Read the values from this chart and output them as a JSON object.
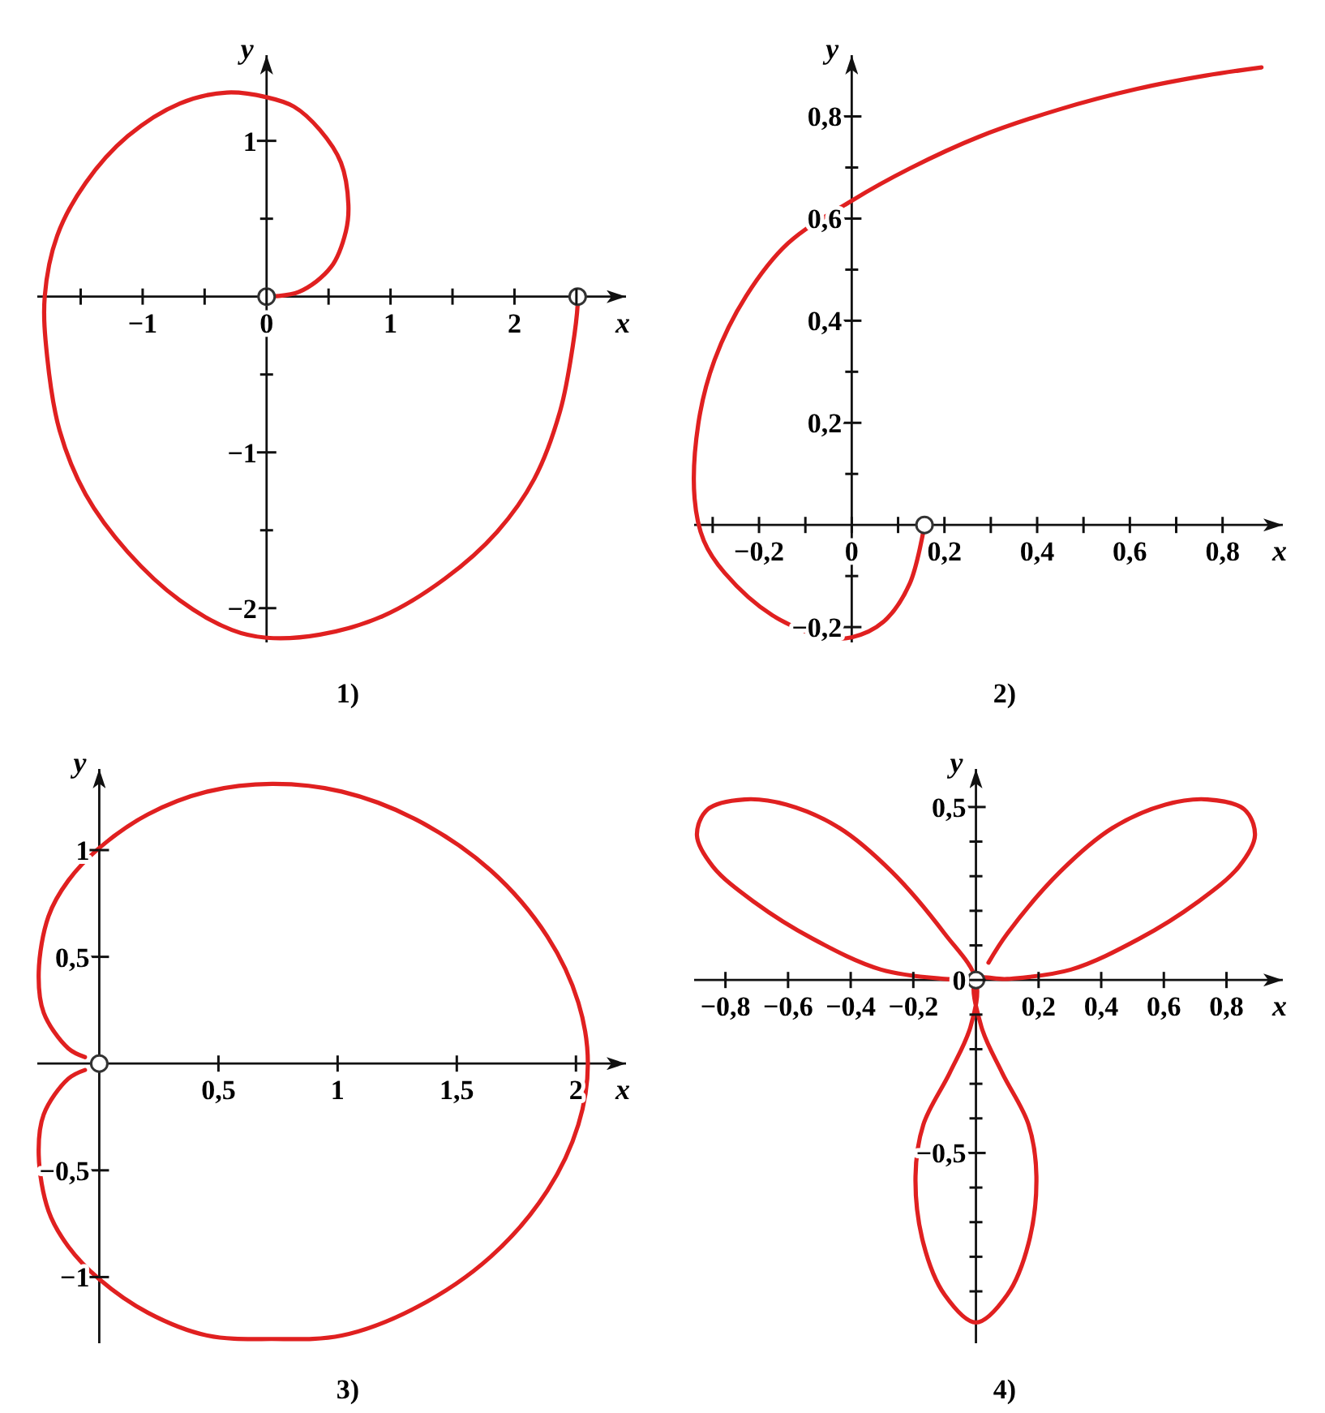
{
  "chart_data": [
    {
      "type": "line",
      "title": "1)",
      "xlabel": "x",
      "ylabel": "y",
      "xlim": [
        -1.85,
        2.9
      ],
      "ylim": [
        -2.22,
        1.55
      ],
      "xticks": [
        {
          "value": -1.5,
          "label": null
        },
        {
          "value": -1,
          "label": "−1"
        },
        {
          "value": -0.5,
          "label": null
        },
        {
          "value": 0,
          "label": "0"
        },
        {
          "value": 0.5,
          "label": null
        },
        {
          "value": 1,
          "label": "1"
        },
        {
          "value": 1.5,
          "label": null
        },
        {
          "value": 2,
          "label": "2"
        },
        {
          "value": 2.5,
          "label": null
        }
      ],
      "yticks": [
        {
          "value": -2,
          "label": "−2"
        },
        {
          "value": -1.5,
          "label": null
        },
        {
          "value": -1,
          "label": "−1"
        },
        {
          "value": -0.5,
          "label": null
        },
        {
          "value": 0.5,
          "label": null
        },
        {
          "value": 1,
          "label": "1"
        }
      ],
      "series": [
        {
          "type": "line",
          "color": "#e02020",
          "x": [
            0,
            0.26,
            0.52,
            0.64,
            0.66,
            0.6,
            0.43,
            0.22,
            0,
            -0.32,
            -0.7,
            -1.12,
            -1.46,
            -1.69,
            -1.79,
            -1.77,
            -1.67,
            -1.46,
            -1.12,
            -0.7,
            -0.28,
            0,
            0.43,
            0.94,
            1.44,
            1.86,
            2.16,
            2.37,
            2.47,
            2.51,
            2.51
          ],
          "values": [
            0,
            0.03,
            0.19,
            0.42,
            0.59,
            0.86,
            1.07,
            1.22,
            1.28,
            1.31,
            1.24,
            1.03,
            0.73,
            0.39,
            0,
            -0.39,
            -0.86,
            -1.27,
            -1.64,
            -1.95,
            -2.14,
            -2.19,
            -2.17,
            -2.05,
            -1.81,
            -1.51,
            -1.17,
            -0.73,
            -0.32,
            -0.05,
            0
          ]
        },
        {
          "type": "scatter",
          "marker": "circle",
          "color": "#333333",
          "x": [
            0,
            2.51
          ],
          "values": [
            0,
            0
          ]
        }
      ]
    },
    {
      "type": "line",
      "title": "2)",
      "xlabel": "x",
      "ylabel": "y",
      "xlim": [
        -0.34,
        0.93
      ],
      "ylim": [
        -0.23,
        0.92
      ],
      "xticks": [
        {
          "value": -0.3,
          "label": null
        },
        {
          "value": -0.2,
          "label": "−0,2"
        },
        {
          "value": -0.1,
          "label": null
        },
        {
          "value": 0,
          "label": "0"
        },
        {
          "value": 0.1,
          "label": null
        },
        {
          "value": 0.2,
          "label": "0,2"
        },
        {
          "value": 0.3,
          "label": null
        },
        {
          "value": 0.4,
          "label": "0,4"
        },
        {
          "value": 0.5,
          "label": null
        },
        {
          "value": 0.6,
          "label": "0,6"
        },
        {
          "value": 0.7,
          "label": null
        },
        {
          "value": 0.8,
          "label": "0,8"
        }
      ],
      "yticks": [
        {
          "value": -0.2,
          "label": "−0,2"
        },
        {
          "value": -0.1,
          "label": null
        },
        {
          "value": 0.1,
          "label": null
        },
        {
          "value": 0.2,
          "label": "0,2"
        },
        {
          "value": 0.3,
          "label": null
        },
        {
          "value": 0.4,
          "label": "0,4"
        },
        {
          "value": 0.5,
          "label": null
        },
        {
          "value": 0.6,
          "label": "0,6"
        },
        {
          "value": 0.7,
          "label": null
        },
        {
          "value": 0.8,
          "label": "0,8"
        }
      ],
      "series": [
        {
          "type": "line",
          "color": "#e02020",
          "x": [
            0.157,
            0.125,
            0.068,
            0,
            -0.057,
            -0.171,
            -0.274,
            -0.319,
            -0.339,
            -0.331,
            -0.296,
            -0.228,
            -0.137,
            0,
            0.125,
            0.274,
            0.445,
            0.616,
            0.764,
            0.884
          ],
          "values": [
            0,
            -0.115,
            -0.19,
            -0.22,
            -0.22,
            -0.177,
            -0.094,
            -0.031,
            0.052,
            0.198,
            0.323,
            0.448,
            0.552,
            0.635,
            0.698,
            0.76,
            0.813,
            0.854,
            0.88,
            0.896
          ]
        },
        {
          "type": "scatter",
          "marker": "circle",
          "color": "#333333",
          "x": [
            0.157
          ],
          "values": [
            0
          ]
        }
      ]
    },
    {
      "type": "line",
      "title": "3)",
      "xlabel": "x",
      "ylabel": "y",
      "xlim": [
        -0.26,
        2.21
      ],
      "ylim": [
        -1.31,
        1.38
      ],
      "xticks": [
        {
          "value": 0.5,
          "label": "0,5"
        },
        {
          "value": 1,
          "label": "1"
        },
        {
          "value": 1.5,
          "label": "1,5"
        },
        {
          "value": 2,
          "label": "2"
        }
      ],
      "yticks": [
        {
          "value": -1,
          "label": "−1"
        },
        {
          "value": -0.5,
          "label": "−0,5"
        },
        {
          "value": 0.5,
          "label": "0,5"
        },
        {
          "value": 1,
          "label": "1"
        }
      ],
      "series": [
        {
          "type": "line",
          "color": "#e02020",
          "x": [
            -0.06,
            -0.13,
            -0.233,
            -0.254,
            -0.213,
            -0.13,
            0,
            0.204,
            0.454,
            0.725,
            1.017,
            1.329,
            1.642,
            1.88,
            2.01,
            2.05,
            2.01,
            1.88,
            1.642,
            1.329,
            1.017,
            0.725,
            0.454,
            0.204,
            0,
            -0.13,
            -0.213,
            -0.254,
            -0.233,
            -0.13,
            -0.06
          ],
          "values": [
            0.03,
            0.071,
            0.238,
            0.429,
            0.69,
            0.857,
            1.01,
            1.167,
            1.274,
            1.31,
            1.274,
            1.143,
            0.905,
            0.595,
            0.286,
            0,
            -0.286,
            -0.595,
            -0.905,
            -1.143,
            -1.274,
            -1.29,
            -1.274,
            -1.167,
            -1.01,
            -0.857,
            -0.69,
            -0.429,
            -0.238,
            -0.071,
            -0.03
          ]
        },
        {
          "type": "scatter",
          "marker": "circle",
          "color": "#333333",
          "x": [
            0
          ],
          "values": [
            0
          ]
        }
      ]
    },
    {
      "type": "line",
      "title": "4)",
      "xlabel": "x",
      "ylabel": "y",
      "xlim": [
        -0.9,
        0.98
      ],
      "ylim": [
        -1.05,
        0.61
      ],
      "xticks": [
        {
          "value": -0.8,
          "label": "−0,8"
        },
        {
          "value": -0.6,
          "label": "−0,6"
        },
        {
          "value": -0.4,
          "label": "−0,4"
        },
        {
          "value": -0.2,
          "label": "−0,2"
        },
        {
          "value": 0.2,
          "label": "0,2"
        },
        {
          "value": 0.4,
          "label": "0,4"
        },
        {
          "value": 0.6,
          "label": "0,6"
        },
        {
          "value": 0.8,
          "label": "0,8"
        }
      ],
      "yticks": [
        {
          "value": -0.9,
          "label": null
        },
        {
          "value": -0.8,
          "label": null
        },
        {
          "value": -0.7,
          "label": null
        },
        {
          "value": -0.6,
          "label": null
        },
        {
          "value": -0.5,
          "label": "−0,5"
        },
        {
          "value": -0.4,
          "label": null
        },
        {
          "value": -0.3,
          "label": null
        },
        {
          "value": -0.2,
          "label": null
        },
        {
          "value": -0.1,
          "label": null
        },
        {
          "value": 0,
          "label": "0"
        },
        {
          "value": 0.1,
          "label": null
        },
        {
          "value": 0.2,
          "label": null
        },
        {
          "value": 0.3,
          "label": null
        },
        {
          "value": 0.4,
          "label": null
        },
        {
          "value": 0.5,
          "label": "0,5"
        }
      ],
      "series": [
        {
          "type": "line",
          "color": "#e02020",
          "x": [
            0.04,
            0.1,
            0.269,
            0.437,
            0.605,
            0.739,
            0.857,
            0.891,
            0.84,
            0.706,
            0.521,
            0.303,
            0.1,
            0,
            0.017,
            0.084,
            0.168,
            0.193,
            0.168,
            0.1,
            0,
            -0.1,
            -0.168,
            -0.193,
            -0.168,
            -0.084,
            -0.017,
            0,
            -0.1,
            -0.269,
            -0.437,
            -0.605,
            -0.739,
            -0.857,
            -0.891,
            -0.84,
            -0.706,
            -0.521,
            -0.303,
            -0.1,
            -0.05
          ],
          "values": [
            0.05,
            0.134,
            0.313,
            0.44,
            0.507,
            0.522,
            0.493,
            0.418,
            0.328,
            0.224,
            0.119,
            0.03,
            0.003,
            0,
            -0.134,
            -0.269,
            -0.418,
            -0.567,
            -0.761,
            -0.91,
            -0.99,
            -0.91,
            -0.761,
            -0.567,
            -0.418,
            -0.269,
            -0.134,
            0,
            0.134,
            0.313,
            0.44,
            0.507,
            0.522,
            0.493,
            0.418,
            0.328,
            0.224,
            0.119,
            0.03,
            0.003,
            0.001
          ]
        },
        {
          "type": "scatter",
          "marker": "circle",
          "color": "#333333",
          "x": [
            0
          ],
          "values": [
            0
          ]
        }
      ]
    }
  ]
}
